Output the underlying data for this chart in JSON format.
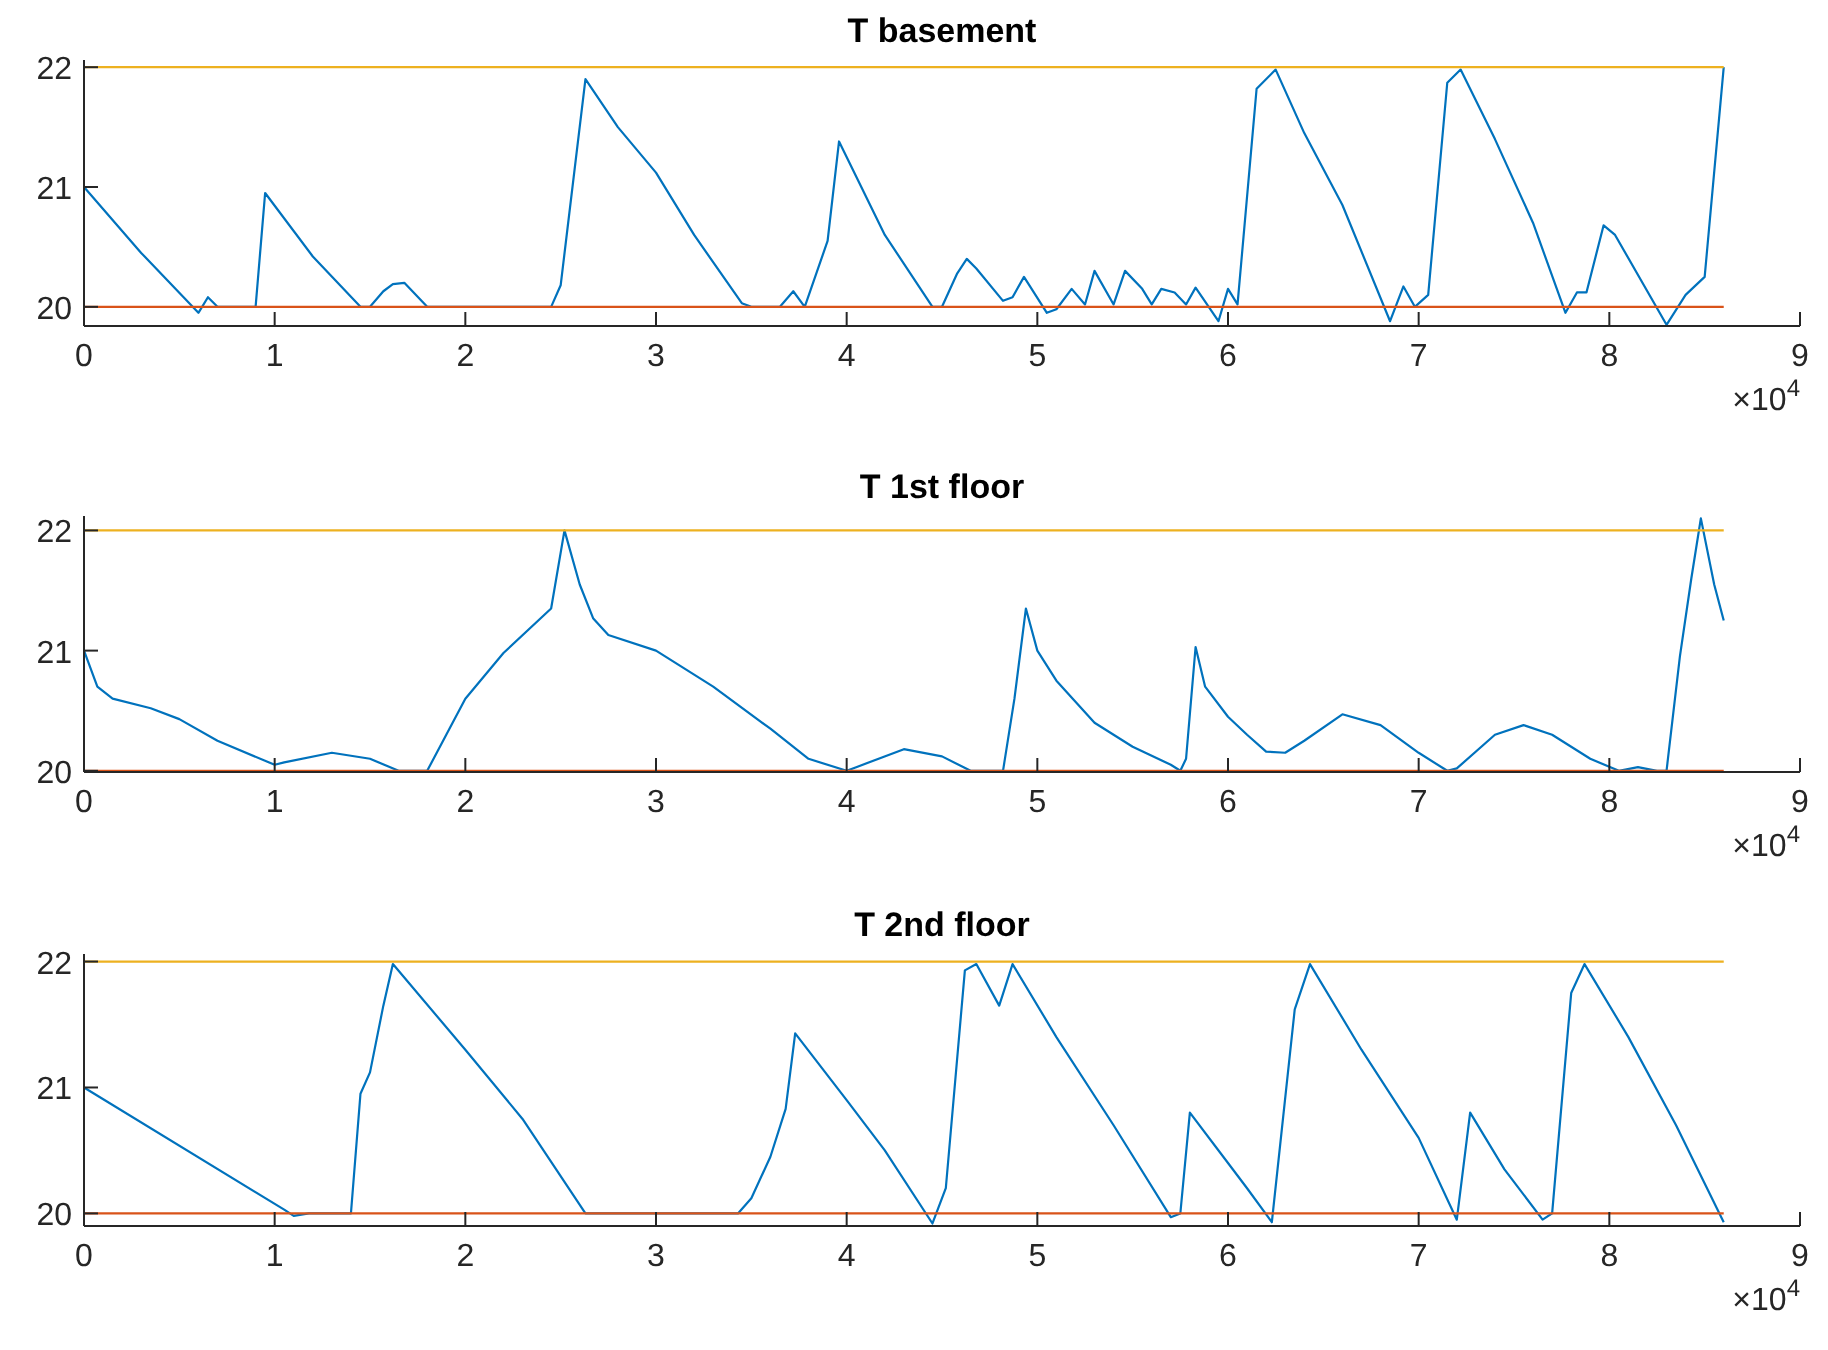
{
  "chart_data": [
    {
      "type": "line",
      "title": "T basement",
      "xlim": [
        0,
        9
      ],
      "ylim": [
        19.84,
        22.06
      ],
      "yticks": [
        20,
        21,
        22
      ],
      "xticks": [
        0,
        1,
        2,
        3,
        4,
        5,
        6,
        7,
        8,
        9
      ],
      "annotations": [
        "×10$^{4}$"
      ],
      "grid": false,
      "series": [
        {
          "color": "#0072bd",
          "x": [
            0,
            0.3,
            0.6,
            0.65,
            0.7,
            0.9,
            0.95,
            1.2,
            1.45,
            1.5,
            1.57,
            1.62,
            1.68,
            1.8,
            2.45,
            2.5,
            2.63,
            2.8,
            3.0,
            3.2,
            3.45,
            3.5,
            3.65,
            3.72,
            3.78,
            3.9,
            3.96,
            4.2,
            4.45,
            4.5,
            4.58,
            4.63,
            4.68,
            4.82,
            4.87,
            4.93,
            5.05,
            5.1,
            5.18,
            5.25,
            5.3,
            5.4,
            5.46,
            5.55,
            5.6,
            5.65,
            5.72,
            5.78,
            5.83,
            5.95,
            6.0,
            6.05,
            6.15,
            6.25,
            6.4,
            6.6,
            6.85,
            6.92,
            6.98,
            7.05,
            7.15,
            7.22,
            7.4,
            7.6,
            7.77,
            7.83,
            7.88,
            7.97,
            8.03,
            8.3,
            8.4,
            8.5,
            8.6
          ],
          "values": [
            21.0,
            20.45,
            19.95,
            20.08,
            20,
            20,
            20.95,
            20.42,
            20,
            20,
            20.13,
            20.19,
            20.2,
            20,
            20,
            20.18,
            21.9,
            21.5,
            21.12,
            20.6,
            20.03,
            20,
            20,
            20.13,
            20,
            20.55,
            21.38,
            20.6,
            20,
            20,
            20.28,
            20.4,
            20.32,
            20.05,
            20.08,
            20.25,
            19.95,
            19.98,
            20.15,
            20.02,
            20.3,
            20.02,
            20.3,
            20.15,
            20.02,
            20.15,
            20.12,
            20.02,
            20.16,
            19.88,
            20.15,
            20.02,
            21.82,
            21.98,
            21.45,
            20.85,
            19.88,
            20.17,
            20,
            20.1,
            21.87,
            21.98,
            21.4,
            20.7,
            19.95,
            20.12,
            20.12,
            20.68,
            20.6,
            19.85,
            20.1,
            20.25,
            22.0
          ]
        },
        {
          "color": "#d95319",
          "x": [
            0,
            8.6
          ],
          "values": [
            20,
            20
          ]
        },
        {
          "color": "#edb120",
          "x": [
            0,
            8.6
          ],
          "values": [
            22,
            22
          ]
        }
      ]
    },
    {
      "type": "line",
      "title": "T 1st floor",
      "xlim": [
        0,
        9
      ],
      "ylim": [
        19.99,
        22.12
      ],
      "yticks": [
        20,
        21,
        22
      ],
      "xticks": [
        0,
        1,
        2,
        3,
        4,
        5,
        6,
        7,
        8,
        9
      ],
      "annotations": [
        "×10$^{4}$"
      ],
      "grid": false,
      "series": [
        {
          "color": "#0072bd",
          "x": [
            0,
            0.07,
            0.15,
            0.35,
            0.5,
            0.7,
            1.0,
            1.05,
            1.3,
            1.5,
            1.65,
            1.8,
            1.9,
            2.0,
            2.2,
            2.45,
            2.52,
            2.6,
            2.67,
            2.75,
            3.0,
            3.3,
            3.6,
            3.8,
            4.0,
            4.05,
            4.3,
            4.5,
            4.65,
            4.82,
            4.88,
            4.94,
            5.0,
            5.1,
            5.3,
            5.5,
            5.7,
            5.75,
            5.78,
            5.83,
            5.88,
            6.0,
            6.1,
            6.2,
            6.3,
            6.4,
            6.6,
            6.8,
            7.0,
            7.15,
            7.2,
            7.4,
            7.55,
            7.7,
            7.9,
            8.05,
            8.15,
            8.25,
            8.3,
            8.37,
            8.43,
            8.48,
            8.55,
            8.6
          ],
          "values": [
            21.0,
            20.7,
            20.6,
            20.52,
            20.43,
            20.25,
            20.05,
            20.07,
            20.15,
            20.1,
            20,
            20,
            20.3,
            20.6,
            20.98,
            21.35,
            22.0,
            21.55,
            21.27,
            21.13,
            21.0,
            20.7,
            20.35,
            20.1,
            20,
            20.03,
            20.18,
            20.12,
            20,
            20,
            20.6,
            21.35,
            21.0,
            20.75,
            20.4,
            20.2,
            20.05,
            20,
            20.1,
            21.03,
            20.7,
            20.45,
            20.3,
            20.16,
            20.15,
            20.25,
            20.47,
            20.38,
            20.15,
            20,
            20.02,
            20.3,
            20.38,
            20.3,
            20.1,
            20,
            20.03,
            20,
            20,
            20.95,
            21.6,
            22.1,
            21.55,
            21.25
          ]
        },
        {
          "color": "#d95319",
          "x": [
            0,
            8.6
          ],
          "values": [
            20,
            20
          ]
        },
        {
          "color": "#edb120",
          "x": [
            0,
            8.6
          ],
          "values": [
            22,
            22
          ]
        }
      ]
    },
    {
      "type": "line",
      "title": "T 2nd floor",
      "xlim": [
        0,
        9
      ],
      "ylim": [
        19.9,
        22.06
      ],
      "yticks": [
        20,
        21,
        22
      ],
      "xticks": [
        0,
        1,
        2,
        3,
        4,
        5,
        6,
        7,
        8,
        9
      ],
      "annotations": [
        "×10$^{4}$"
      ],
      "grid": false,
      "series": [
        {
          "color": "#0072bd",
          "x": [
            0,
            1.05,
            1.1,
            1.18,
            1.4,
            1.45,
            1.5,
            1.57,
            1.62,
            2.0,
            2.3,
            2.63,
            3.43,
            3.5,
            3.6,
            3.68,
            3.73,
            4.0,
            4.2,
            4.45,
            4.52,
            4.62,
            4.68,
            4.8,
            4.87,
            5.1,
            5.4,
            5.7,
            5.75,
            5.8,
            6.0,
            6.1,
            6.23,
            6.35,
            6.43,
            6.7,
            7.0,
            7.2,
            7.27,
            7.45,
            7.65,
            7.7,
            7.8,
            7.87,
            8.1,
            8.35,
            8.6
          ],
          "values": [
            21.0,
            20.03,
            19.98,
            20,
            20,
            20.95,
            21.12,
            21.65,
            21.98,
            21.3,
            20.75,
            20,
            20,
            20.12,
            20.45,
            20.83,
            21.43,
            20.9,
            20.5,
            19.92,
            20.2,
            21.93,
            21.98,
            21.65,
            21.98,
            21.4,
            20.7,
            19.97,
            20,
            20.8,
            20.4,
            20.2,
            19.93,
            21.62,
            21.98,
            21.3,
            20.6,
            19.95,
            20.8,
            20.35,
            19.95,
            20,
            21.75,
            21.98,
            21.4,
            20.7,
            19.93
          ]
        },
        {
          "color": "#d95319",
          "x": [
            0,
            8.6
          ],
          "values": [
            20,
            20
          ]
        },
        {
          "color": "#edb120",
          "x": [
            0,
            8.6
          ],
          "values": [
            22,
            22
          ]
        }
      ]
    }
  ]
}
